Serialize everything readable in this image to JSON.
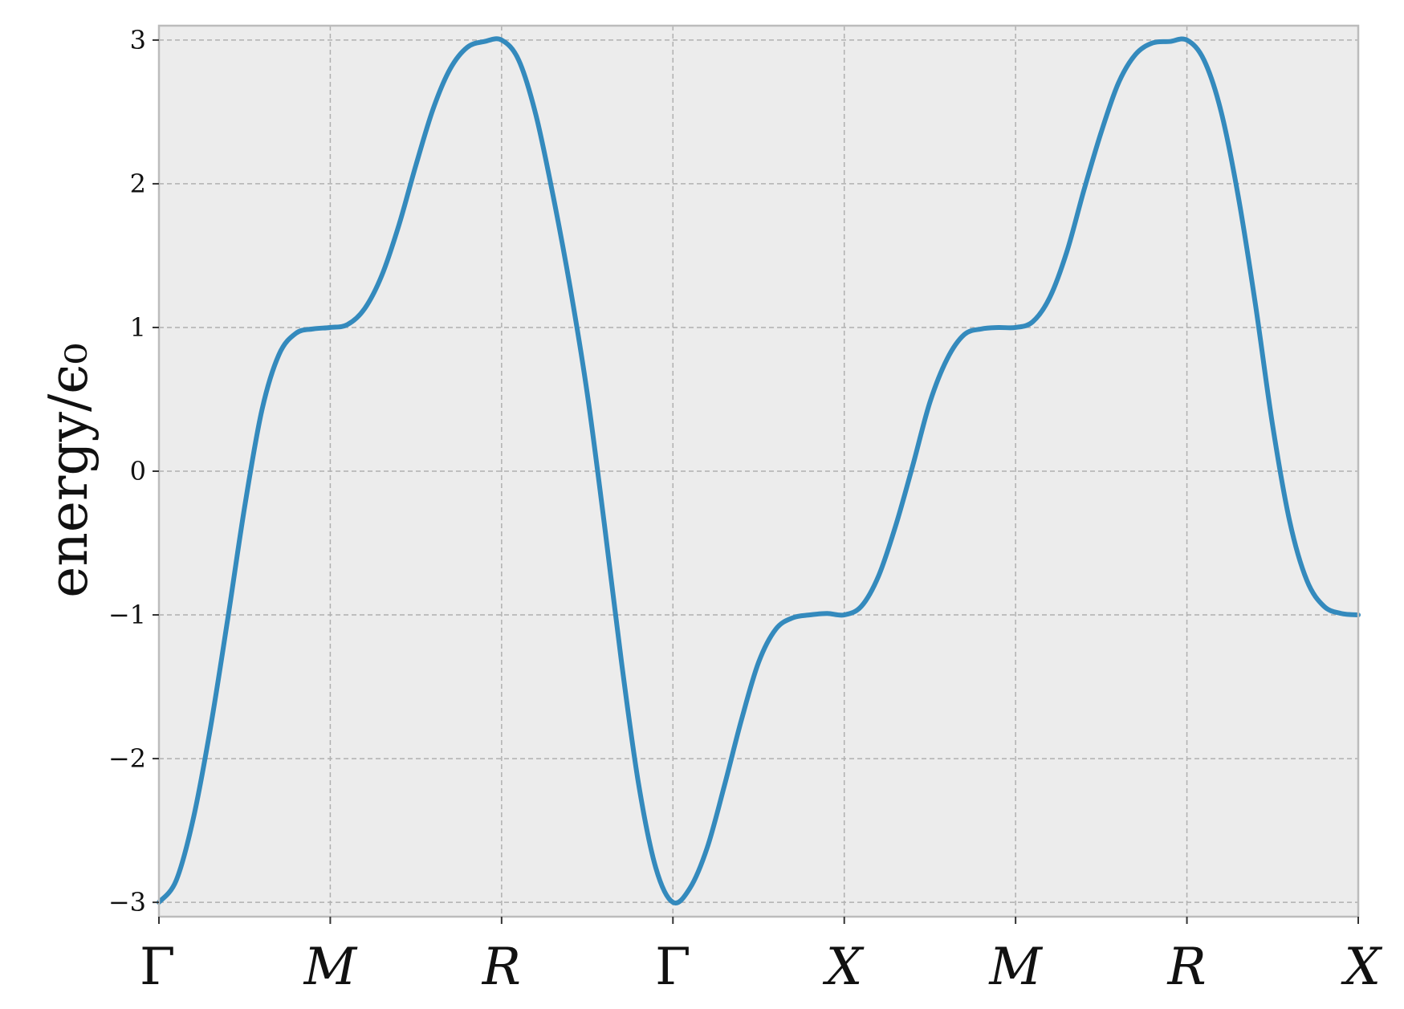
{
  "chart_data": {
    "type": "line",
    "title": "",
    "xlabel": "",
    "ylabel": "energy/ϵ₀",
    "xlim": [
      0,
      7
    ],
    "ylim": [
      -3.1,
      3.1
    ],
    "grid": true,
    "x_ticks": [
      {
        "pos": 0,
        "label": "Γ",
        "italic": false
      },
      {
        "pos": 1,
        "label": "M",
        "italic": true
      },
      {
        "pos": 2,
        "label": "R",
        "italic": true
      },
      {
        "pos": 3,
        "label": "Γ",
        "italic": false
      },
      {
        "pos": 4,
        "label": "X",
        "italic": true
      },
      {
        "pos": 5,
        "label": "M",
        "italic": true
      },
      {
        "pos": 6,
        "label": "R",
        "italic": true
      },
      {
        "pos": 7,
        "label": "X",
        "italic": true
      }
    ],
    "y_ticks": [
      {
        "value": 3,
        "label": "3"
      },
      {
        "value": 2,
        "label": "2"
      },
      {
        "value": 1,
        "label": "1"
      },
      {
        "value": 0,
        "label": "0"
      },
      {
        "value": -1,
        "label": "−1"
      },
      {
        "value": -2,
        "label": "−2"
      },
      {
        "value": -3,
        "label": "−3"
      }
    ],
    "series": [
      {
        "color": "#348abd",
        "points": [
          [
            0.0,
            -3.0
          ],
          [
            0.1,
            -2.85
          ],
          [
            0.2,
            -2.42
          ],
          [
            0.3,
            -1.79
          ],
          [
            0.4,
            -1.04
          ],
          [
            0.5,
            -0.25
          ],
          [
            0.6,
            0.42
          ],
          [
            0.7,
            0.81
          ],
          [
            0.8,
            0.96
          ],
          [
            0.9,
            0.99
          ],
          [
            1.0,
            1.0
          ],
          [
            1.1,
            1.02
          ],
          [
            1.2,
            1.13
          ],
          [
            1.3,
            1.36
          ],
          [
            1.4,
            1.71
          ],
          [
            1.5,
            2.13
          ],
          [
            1.6,
            2.52
          ],
          [
            1.7,
            2.8
          ],
          [
            1.8,
            2.95
          ],
          [
            1.9,
            2.99
          ],
          [
            2.0,
            3.0
          ],
          [
            2.1,
            2.86
          ],
          [
            2.2,
            2.48
          ],
          [
            2.3,
            1.92
          ],
          [
            2.4,
            1.28
          ],
          [
            2.5,
            0.54
          ],
          [
            2.6,
            -0.37
          ],
          [
            2.7,
            -1.33
          ],
          [
            2.8,
            -2.18
          ],
          [
            2.9,
            -2.76
          ],
          [
            3.0,
            -3.0
          ],
          [
            3.1,
            -2.9
          ],
          [
            3.2,
            -2.62
          ],
          [
            3.3,
            -2.19
          ],
          [
            3.4,
            -1.73
          ],
          [
            3.5,
            -1.33
          ],
          [
            3.6,
            -1.1
          ],
          [
            3.7,
            -1.02
          ],
          [
            3.8,
            -1.0
          ],
          [
            3.9,
            -0.99
          ],
          [
            4.0,
            -1.0
          ],
          [
            4.1,
            -0.94
          ],
          [
            4.2,
            -0.73
          ],
          [
            4.3,
            -0.38
          ],
          [
            4.4,
            0.04
          ],
          [
            4.5,
            0.48
          ],
          [
            4.6,
            0.78
          ],
          [
            4.7,
            0.95
          ],
          [
            4.8,
            0.99
          ],
          [
            4.9,
            1.0
          ],
          [
            5.0,
            1.0
          ],
          [
            5.1,
            1.04
          ],
          [
            5.2,
            1.21
          ],
          [
            5.3,
            1.53
          ],
          [
            5.4,
            1.96
          ],
          [
            5.5,
            2.36
          ],
          [
            5.6,
            2.7
          ],
          [
            5.7,
            2.9
          ],
          [
            5.8,
            2.98
          ],
          [
            5.9,
            2.99
          ],
          [
            6.0,
            3.0
          ],
          [
            6.1,
            2.86
          ],
          [
            6.2,
            2.5
          ],
          [
            6.3,
            1.91
          ],
          [
            6.4,
            1.16
          ],
          [
            6.5,
            0.32
          ],
          [
            6.6,
            -0.35
          ],
          [
            6.7,
            -0.76
          ],
          [
            6.8,
            -0.94
          ],
          [
            6.9,
            -0.99
          ],
          [
            7.0,
            -1.0
          ]
        ]
      }
    ]
  }
}
